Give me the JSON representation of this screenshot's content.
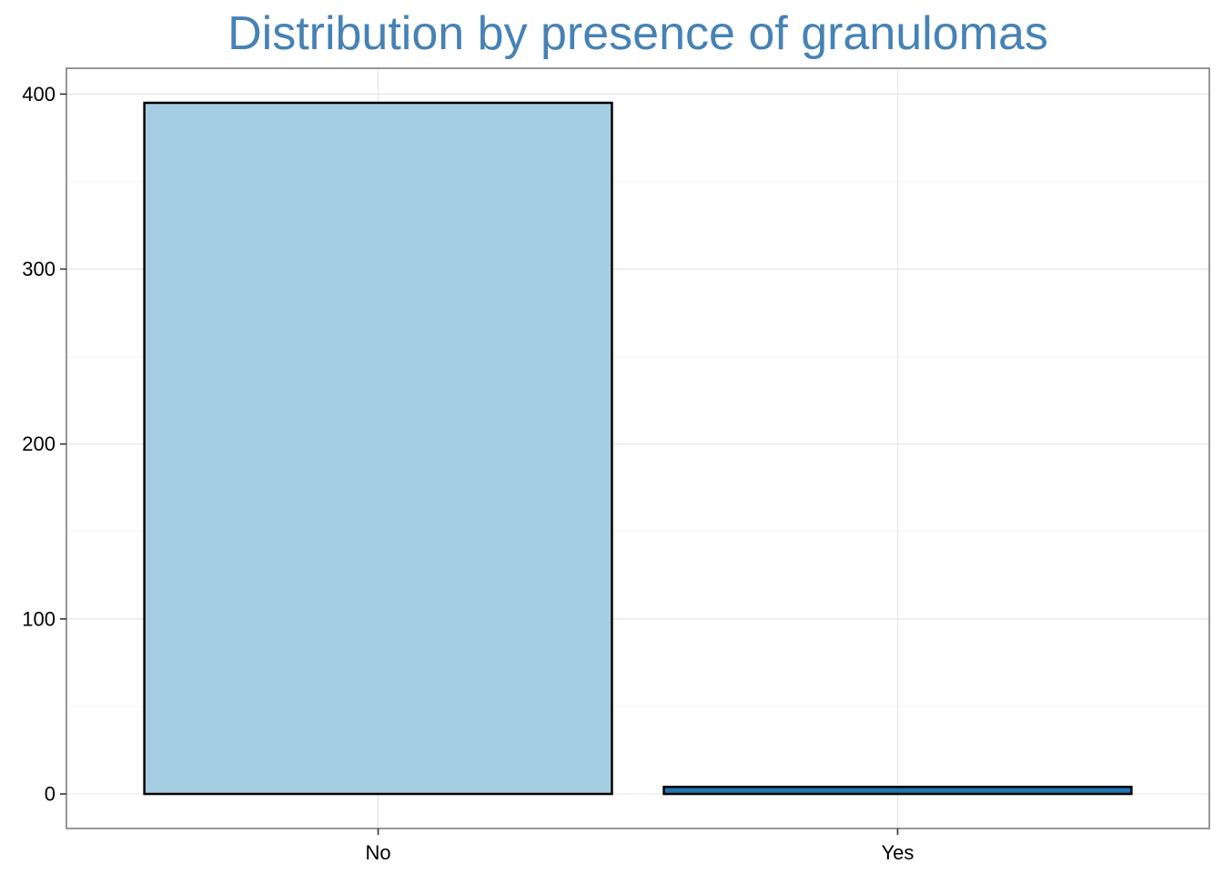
{
  "chart_data": {
    "type": "bar",
    "title": "Distribution by presence of granulomas",
    "xlabel": "",
    "ylabel": "",
    "categories": [
      "No",
      "Yes"
    ],
    "values": [
      395,
      4
    ],
    "colors": [
      "#a6cee3",
      "#1f78b4"
    ],
    "bar_outline": "#000000",
    "ylim": [
      -19.75,
      414.75
    ],
    "yticks": [
      0,
      100,
      200,
      300,
      400
    ],
    "grid": true,
    "legend": "none"
  }
}
